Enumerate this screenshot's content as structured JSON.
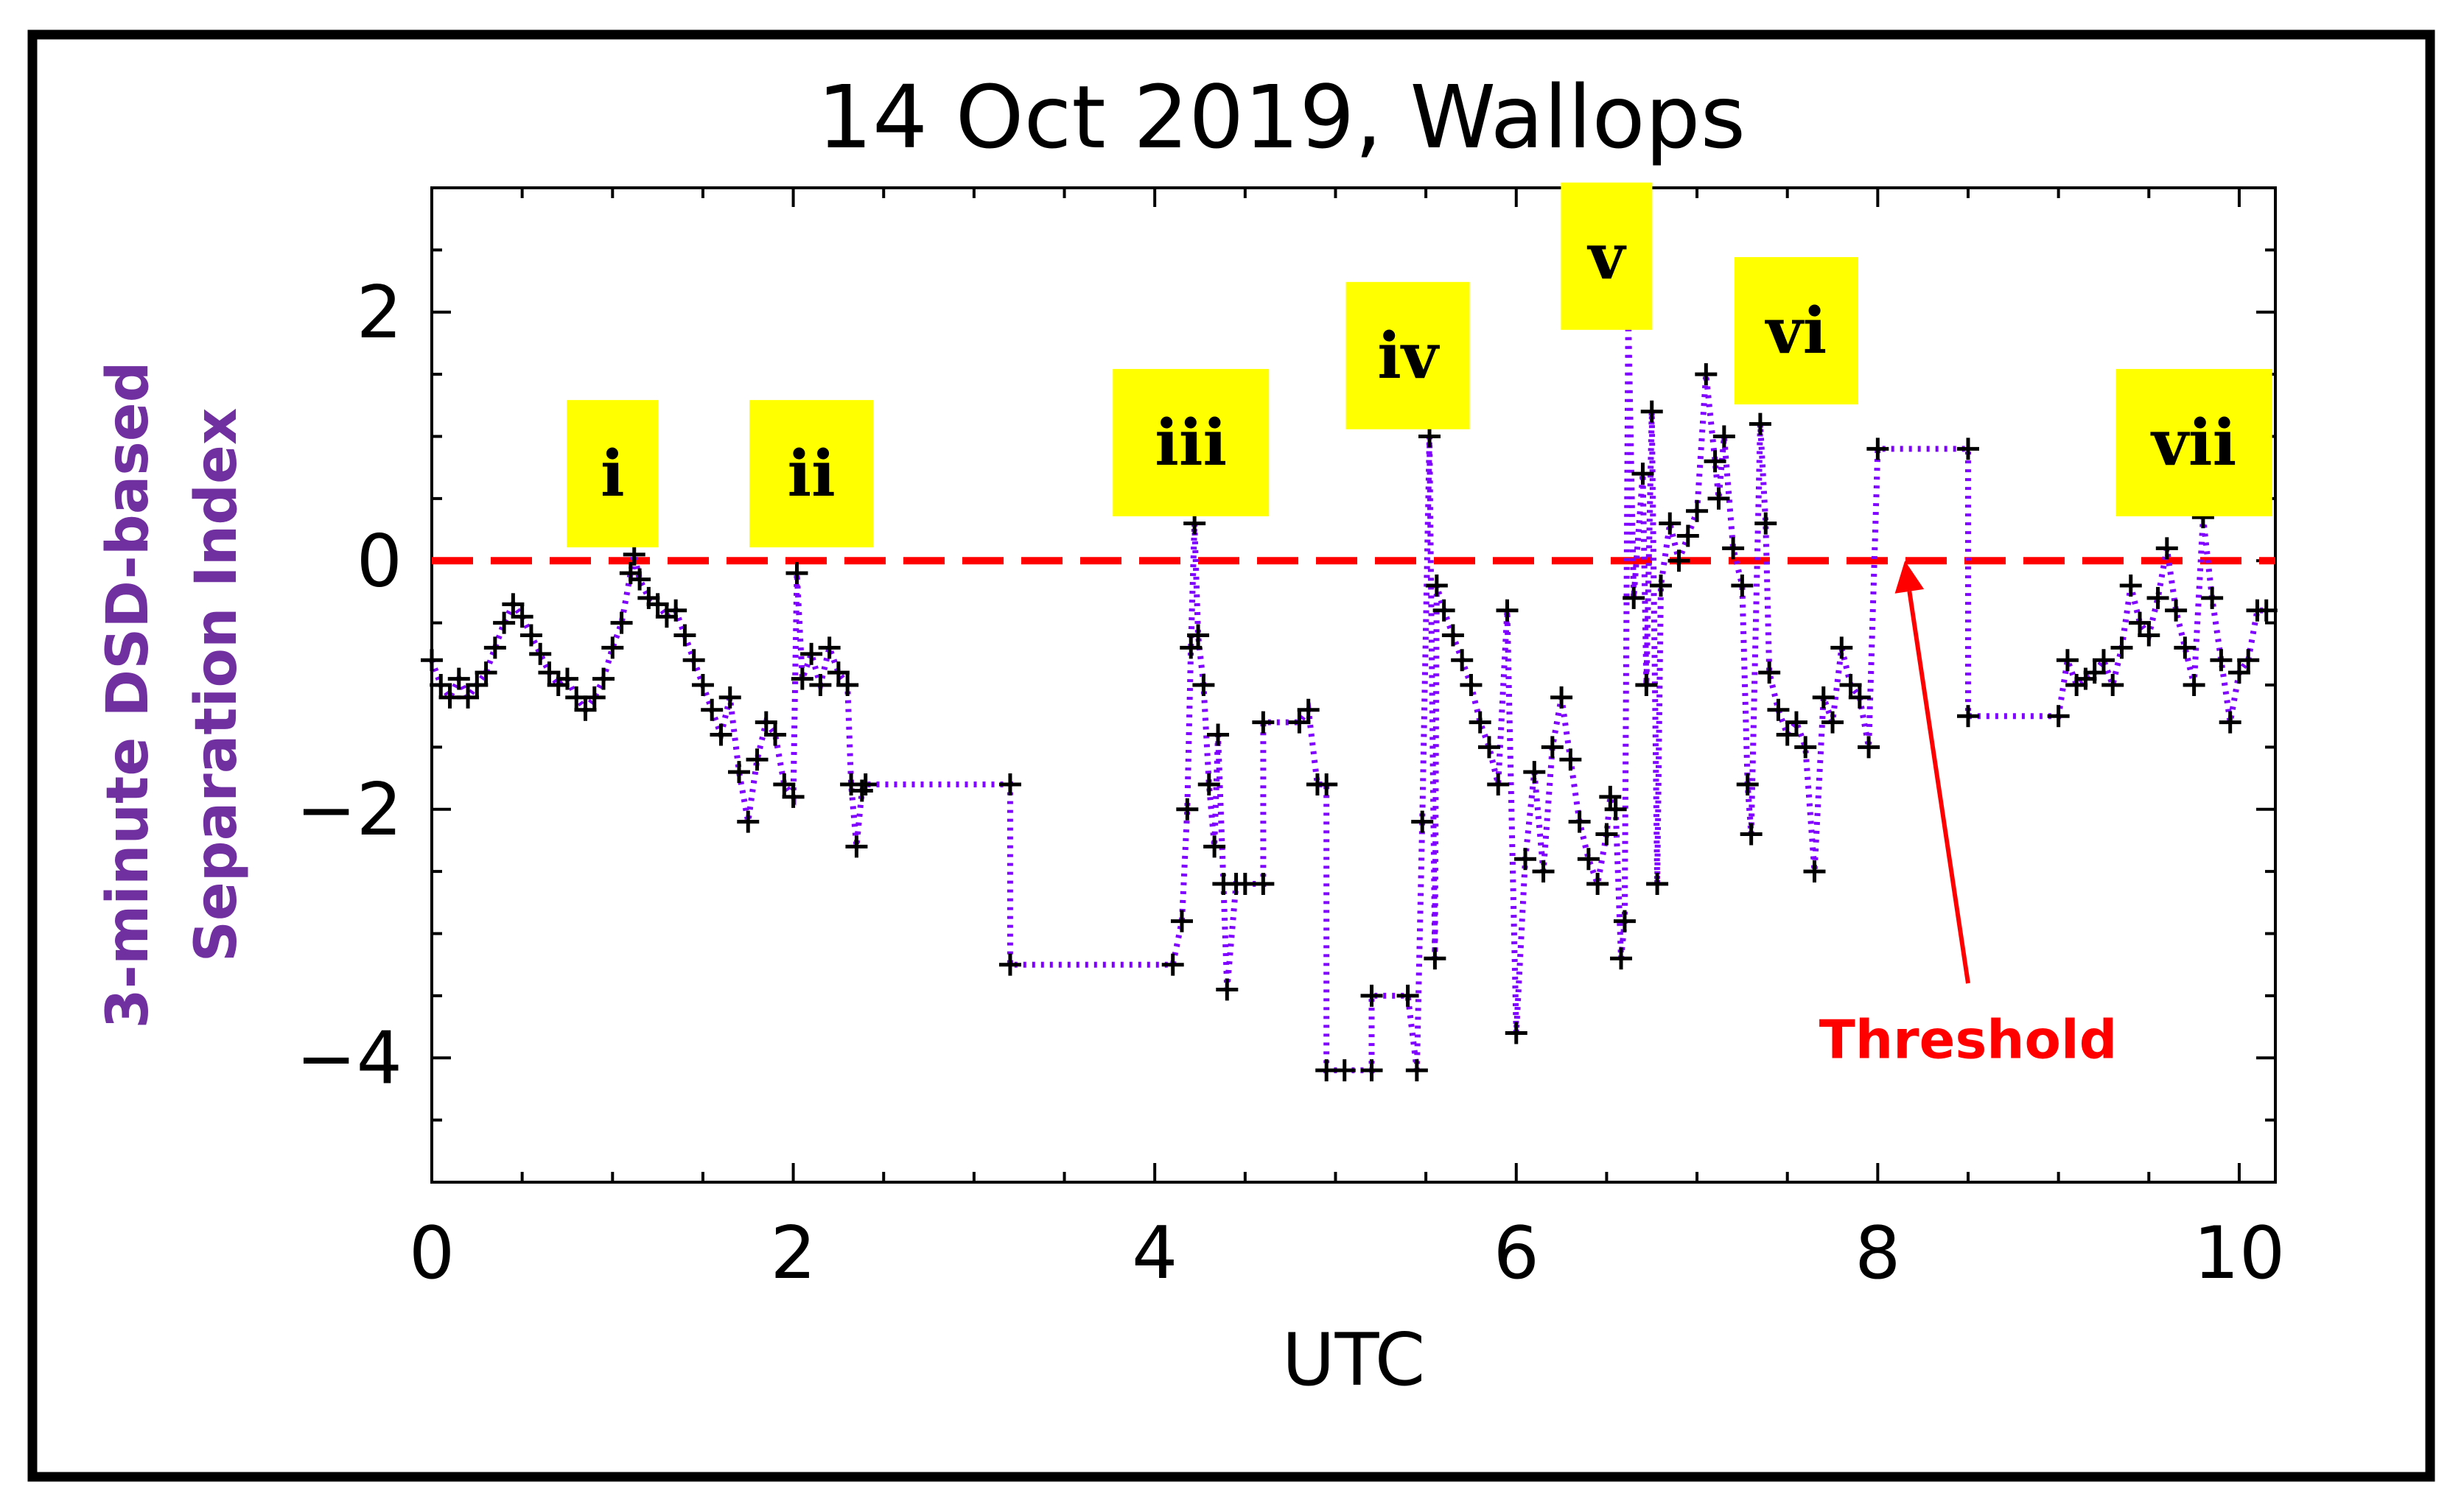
{
  "chart_data": {
    "type": "scatter",
    "title": "14 Oct 2019, Wallops",
    "xlabel": "UTC",
    "ylabel_lines": [
      "3-minute DSD-based",
      "Separation Index"
    ],
    "xlim": [
      0,
      10.2
    ],
    "ylim": [
      -5,
      3
    ],
    "xticks": [
      0,
      2,
      4,
      6,
      8,
      10
    ],
    "xtick_labels": [
      "0",
      "2",
      "4",
      "6",
      "8",
      "10"
    ],
    "yticks": [
      -4,
      -2,
      0,
      2
    ],
    "ytick_labels": [
      "−4",
      "−2",
      "0",
      "2"
    ],
    "threshold": {
      "value": 0,
      "label": "Threshold",
      "color": "#ff0000"
    },
    "series": [
      {
        "name": "Separation Index",
        "line_color": "#8000ff",
        "marker": "+",
        "marker_color": "#000000",
        "points": [
          [
            0.0,
            -0.8
          ],
          [
            0.05,
            -1.0
          ],
          [
            0.1,
            -1.1
          ],
          [
            0.15,
            -0.95
          ],
          [
            0.2,
            -1.1
          ],
          [
            0.25,
            -1.0
          ],
          [
            0.3,
            -0.9
          ],
          [
            0.35,
            -0.7
          ],
          [
            0.4,
            -0.5
          ],
          [
            0.45,
            -0.35
          ],
          [
            0.5,
            -0.45
          ],
          [
            0.55,
            -0.6
          ],
          [
            0.6,
            -0.75
          ],
          [
            0.65,
            -0.9
          ],
          [
            0.7,
            -1.0
          ],
          [
            0.75,
            -0.95
          ],
          [
            0.8,
            -1.1
          ],
          [
            0.85,
            -1.2
          ],
          [
            0.9,
            -1.1
          ],
          [
            0.95,
            -0.95
          ],
          [
            1.0,
            -0.7
          ],
          [
            1.05,
            -0.5
          ],
          [
            1.1,
            -0.1
          ],
          [
            1.12,
            0.05
          ],
          [
            1.15,
            -0.15
          ],
          [
            1.2,
            -0.3
          ],
          [
            1.25,
            -0.35
          ],
          [
            1.3,
            -0.45
          ],
          [
            1.35,
            -0.4
          ],
          [
            1.4,
            -0.6
          ],
          [
            1.45,
            -0.8
          ],
          [
            1.5,
            -1.0
          ],
          [
            1.55,
            -1.2
          ],
          [
            1.6,
            -1.4
          ],
          [
            1.65,
            -1.1
          ],
          [
            1.7,
            -1.7
          ],
          [
            1.75,
            -2.1
          ],
          [
            1.8,
            -1.6
          ],
          [
            1.85,
            -1.3
          ],
          [
            1.9,
            -1.4
          ],
          [
            1.95,
            -1.8
          ],
          [
            2.0,
            -1.9
          ],
          [
            2.02,
            -0.1
          ],
          [
            2.05,
            -0.95
          ],
          [
            2.1,
            -0.75
          ],
          [
            2.15,
            -1.0
          ],
          [
            2.2,
            -0.7
          ],
          [
            2.25,
            -0.9
          ],
          [
            2.3,
            -1.0
          ],
          [
            2.32,
            -1.8
          ],
          [
            2.35,
            -2.3
          ],
          [
            2.38,
            -1.85
          ],
          [
            2.4,
            -1.8
          ],
          [
            3.2,
            -1.8
          ],
          [
            3.2,
            -3.25
          ],
          [
            4.1,
            -3.25
          ],
          [
            4.15,
            -2.9
          ],
          [
            4.18,
            -2.0
          ],
          [
            4.2,
            -0.7
          ],
          [
            4.22,
            0.3
          ],
          [
            4.24,
            -0.6
          ],
          [
            4.27,
            -1.0
          ],
          [
            4.3,
            -1.8
          ],
          [
            4.33,
            -2.3
          ],
          [
            4.35,
            -1.4
          ],
          [
            4.38,
            -2.6
          ],
          [
            4.4,
            -3.45
          ],
          [
            4.45,
            -2.6
          ],
          [
            4.5,
            -2.6
          ],
          [
            4.6,
            -2.6
          ],
          [
            4.6,
            -1.3
          ],
          [
            4.8,
            -1.3
          ],
          [
            4.85,
            -1.2
          ],
          [
            4.9,
            -1.8
          ],
          [
            4.95,
            -1.8
          ],
          [
            4.95,
            -4.1
          ],
          [
            5.05,
            -4.1
          ],
          [
            5.2,
            -4.1
          ],
          [
            5.2,
            -3.5
          ],
          [
            5.4,
            -3.5
          ],
          [
            5.45,
            -4.1
          ],
          [
            5.48,
            -2.1
          ],
          [
            5.52,
            1.0
          ],
          [
            5.55,
            -3.2
          ],
          [
            5.56,
            -0.2
          ],
          [
            5.6,
            -0.4
          ],
          [
            5.65,
            -0.6
          ],
          [
            5.7,
            -0.8
          ],
          [
            5.75,
            -1.0
          ],
          [
            5.8,
            -1.3
          ],
          [
            5.85,
            -1.5
          ],
          [
            5.9,
            -1.8
          ],
          [
            5.95,
            -0.4
          ],
          [
            6.0,
            -3.8
          ],
          [
            6.05,
            -2.4
          ],
          [
            6.1,
            -1.7
          ],
          [
            6.15,
            -2.5
          ],
          [
            6.2,
            -1.5
          ],
          [
            6.25,
            -1.1
          ],
          [
            6.3,
            -1.6
          ],
          [
            6.35,
            -2.1
          ],
          [
            6.4,
            -2.4
          ],
          [
            6.45,
            -2.6
          ],
          [
            6.5,
            -2.2
          ],
          [
            6.52,
            -1.9
          ],
          [
            6.55,
            -2.0
          ],
          [
            6.58,
            -3.2
          ],
          [
            6.6,
            -2.9
          ],
          [
            6.62,
            2.0
          ],
          [
            6.65,
            -0.3
          ],
          [
            6.7,
            0.7
          ],
          [
            6.72,
            -1.0
          ],
          [
            6.75,
            1.2
          ],
          [
            6.78,
            -2.6
          ],
          [
            6.8,
            -0.2
          ],
          [
            6.85,
            0.3
          ],
          [
            6.9,
            0.0
          ],
          [
            6.95,
            0.2
          ],
          [
            7.0,
            0.4
          ],
          [
            7.05,
            1.5
          ],
          [
            7.1,
            0.8
          ],
          [
            7.12,
            0.5
          ],
          [
            7.15,
            1.0
          ],
          [
            7.2,
            0.1
          ],
          [
            7.25,
            -0.2
          ],
          [
            7.28,
            -1.8
          ],
          [
            7.3,
            -2.2
          ],
          [
            7.35,
            1.1
          ],
          [
            7.38,
            0.3
          ],
          [
            7.4,
            -0.9
          ],
          [
            7.45,
            -1.2
          ],
          [
            7.5,
            -1.4
          ],
          [
            7.55,
            -1.3
          ],
          [
            7.6,
            -1.5
          ],
          [
            7.65,
            -2.5
          ],
          [
            7.7,
            -1.1
          ],
          [
            7.75,
            -1.3
          ],
          [
            7.8,
            -0.7
          ],
          [
            7.85,
            -1.0
          ],
          [
            7.9,
            -1.1
          ],
          [
            7.95,
            -1.5
          ],
          [
            8.0,
            0.9
          ],
          [
            8.5,
            0.9
          ],
          [
            8.5,
            -1.25
          ],
          [
            9.0,
            -1.25
          ],
          [
            9.05,
            -0.8
          ],
          [
            9.1,
            -1.0
          ],
          [
            9.15,
            -0.95
          ],
          [
            9.2,
            -0.9
          ],
          [
            9.25,
            -0.8
          ],
          [
            9.3,
            -1.0
          ],
          [
            9.35,
            -0.7
          ],
          [
            9.4,
            -0.2
          ],
          [
            9.45,
            -0.5
          ],
          [
            9.5,
            -0.6
          ],
          [
            9.55,
            -0.3
          ],
          [
            9.6,
            0.1
          ],
          [
            9.65,
            -0.4
          ],
          [
            9.7,
            -0.7
          ],
          [
            9.75,
            -1.0
          ],
          [
            9.8,
            0.35
          ],
          [
            9.85,
            -0.3
          ],
          [
            9.9,
            -0.8
          ],
          [
            9.95,
            -1.3
          ],
          [
            10.0,
            -0.9
          ],
          [
            10.05,
            -0.8
          ],
          [
            10.1,
            -0.4
          ],
          [
            10.15,
            -0.4
          ]
        ]
      }
    ],
    "annotations": [
      {
        "label": "i",
        "x": 1.0,
        "y": 0.7
      },
      {
        "label": "ii",
        "x": 2.1,
        "y": 0.7
      },
      {
        "label": "iii",
        "x": 4.2,
        "y": 0.95
      },
      {
        "label": "iv",
        "x": 5.4,
        "y": 1.65
      },
      {
        "label": "v",
        "x": 6.5,
        "y": 2.45
      },
      {
        "label": "vi",
        "x": 7.55,
        "y": 1.85
      },
      {
        "label": "vii",
        "x": 9.75,
        "y": 0.95
      }
    ],
    "threshold_arrow": {
      "from": [
        8.5,
        -3.4
      ],
      "to": [
        8.15,
        0.0
      ]
    },
    "threshold_label_pos": [
      8.5,
      -4.0
    ]
  }
}
